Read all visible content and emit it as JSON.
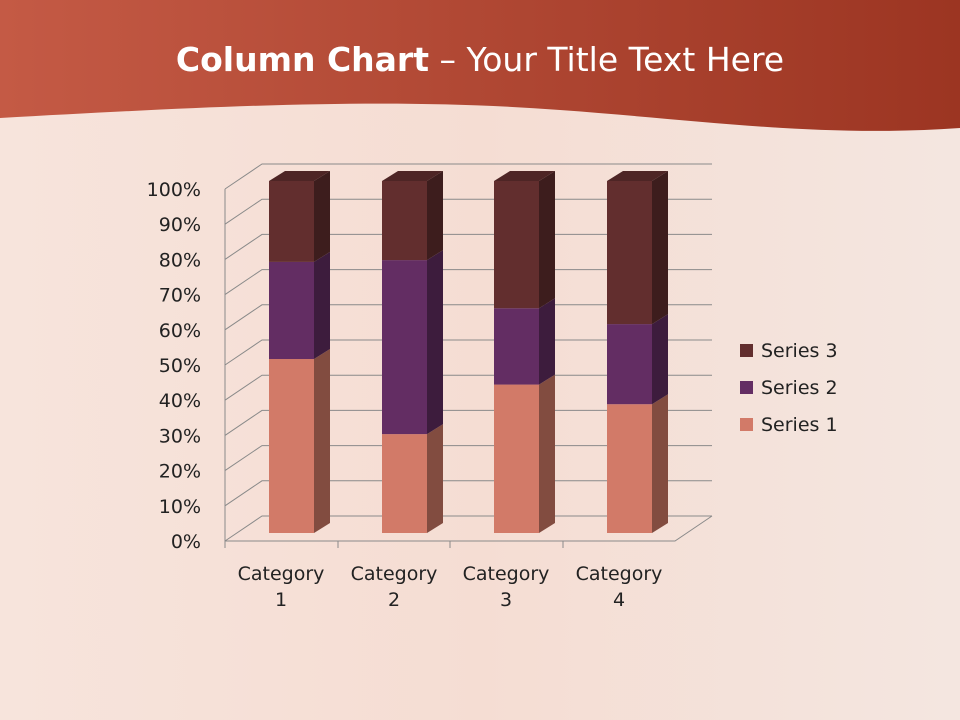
{
  "title": {
    "bold": "Column Chart",
    "rest": " – Your Title Text Here"
  },
  "colors": {
    "header": "#b5402a",
    "series": [
      "#d27a68",
      "#632d63",
      "#622e2e"
    ]
  },
  "chart_data": {
    "type": "bar",
    "stacked": "percent",
    "three_d": true,
    "categories": [
      "Category 1",
      "Category 2",
      "Category 3",
      "Category 4"
    ],
    "category_lines": [
      [
        "Category",
        "1"
      ],
      [
        "Category",
        "2"
      ],
      [
        "Category",
        "3"
      ],
      [
        "Category",
        "4"
      ]
    ],
    "series": [
      {
        "name": "Series 1",
        "values": [
          4.3,
          2.5,
          3.5,
          4.5
        ]
      },
      {
        "name": "Series 2",
        "values": [
          2.4,
          4.4,
          1.8,
          2.8
        ]
      },
      {
        "name": "Series 3",
        "values": [
          2,
          2,
          3,
          5
        ]
      }
    ],
    "yticks": [
      "0%",
      "10%",
      "20%",
      "30%",
      "40%",
      "50%",
      "60%",
      "70%",
      "80%",
      "90%",
      "100%"
    ],
    "ylim": [
      0,
      100
    ],
    "grid": true,
    "legend": "right"
  }
}
